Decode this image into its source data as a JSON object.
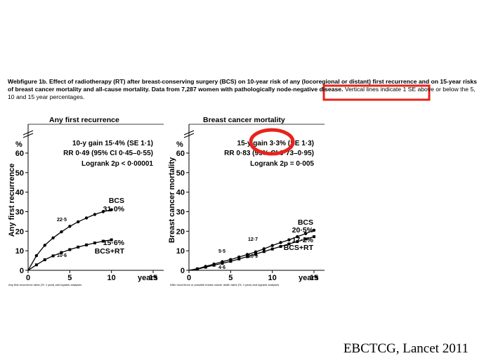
{
  "caption": {
    "lead": "Webfigure 1b. Effect of radiotherapy (RT) after breast-conserving surgery (BCS) on 10-year risk of any (locoregional or distant) first recurrence and on 15-year risks of breast cancer mortality and all-cause mortality. Data from 7,287 women with pathologically node-negative disease.",
    "tail": "Vertical lines indicate 1 SE above or below the 5, 10 and 15 year percentages."
  },
  "credit": "EBCTCG, Lancet 2011",
  "highlight_color": "#e8231b",
  "line_color": "#000000",
  "chart_data": [
    {
      "type": "line",
      "title": "Any first recurrence",
      "ylabel": "Any first recurrence",
      "yunit": "%",
      "xunit": "years",
      "xlim": [
        0,
        15
      ],
      "ylim": [
        0,
        60
      ],
      "xticks": [
        0,
        5,
        10,
        15
      ],
      "yticks": [
        0,
        10,
        20,
        30,
        40,
        50,
        60
      ],
      "stats": [
        "10-y gain 15·4% (SE 1·1)",
        "RR 0·49 (95% CI 0·45–0·55)",
        "Logrank 2p < 0·00001"
      ],
      "footnote": "Any first recurrence rates (%: 1 year) and logrank analyses",
      "series": [
        {
          "name": "BCS",
          "end_label": "31·0%",
          "mid_label": "22·5",
          "x": [
            0,
            1,
            2,
            3,
            4,
            5,
            6,
            7,
            8,
            9,
            10
          ],
          "y": [
            0,
            7.5,
            12.8,
            16.6,
            19.7,
            22.5,
            24.8,
            26.8,
            28.6,
            30,
            31
          ]
        },
        {
          "name": "BCS+RT",
          "end_label": "15·6%",
          "mid_label": "10·6",
          "x": [
            0,
            1,
            2,
            3,
            4,
            5,
            6,
            7,
            8,
            9,
            10
          ],
          "y": [
            0,
            2.8,
            5.4,
            7.4,
            9.1,
            10.6,
            11.9,
            13,
            14,
            14.9,
            15.6
          ]
        }
      ]
    },
    {
      "type": "line",
      "title": "Breast cancer mortality",
      "ylabel": "Breast cancer mortality",
      "yunit": "%",
      "xunit": "years",
      "xlim": [
        0,
        15
      ],
      "ylim": [
        0,
        60
      ],
      "xticks": [
        0,
        5,
        10,
        15
      ],
      "yticks": [
        0,
        10,
        20,
        30,
        40,
        50,
        60
      ],
      "stats": [
        "15-y gain 3·3% (SE 1·3)",
        "RR 0·83 (95% CI 0·73–0·95)",
        "Logrank 2p = 0·005"
      ],
      "footnote": "After recurrence or possible breast cancer death rates (%: 1 year) and logrank analyses",
      "series": [
        {
          "name": "BCS",
          "end_label": "20·5%",
          "labels": {
            "5": "5·5",
            "10": "12·7"
          },
          "x": [
            0,
            1,
            2,
            3,
            4,
            5,
            6,
            7,
            8,
            9,
            10,
            11,
            12,
            13,
            14,
            15
          ],
          "y": [
            0,
            0.8,
            2,
            3.2,
            4.4,
            5.5,
            6.8,
            8.1,
            9.4,
            11,
            12.7,
            14.2,
            15.6,
            17.2,
            18.8,
            20.5
          ]
        },
        {
          "name": "BCS+RT",
          "end_label": "17·2%",
          "labels": {
            "5": "4·6",
            "10": "10·9"
          },
          "x": [
            0,
            1,
            2,
            3,
            4,
            5,
            6,
            7,
            8,
            9,
            10,
            11,
            12,
            13,
            14,
            15
          ],
          "y": [
            0,
            0.6,
            1.6,
            2.6,
            3.6,
            4.6,
            5.8,
            7,
            8.3,
            9.6,
            10.9,
            12.2,
            13.5,
            14.7,
            16,
            17.2
          ]
        }
      ]
    }
  ]
}
